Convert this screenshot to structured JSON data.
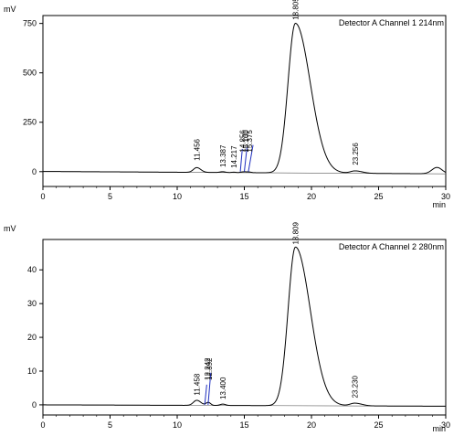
{
  "chart_data": [
    {
      "type": "line",
      "panel": "top",
      "ylabel": "mV",
      "xlabel": "min",
      "channel_label": "Detector A Channel 1 214nm",
      "xlim": [
        0,
        30
      ],
      "ylim": [
        -75,
        790
      ],
      "x_ticks": [
        0,
        5,
        10,
        15,
        20,
        25,
        30
      ],
      "x_tick_labels": [
        "0",
        "5",
        "10",
        "15",
        "20",
        "25",
        "30"
      ],
      "y_ticks": [
        0,
        250,
        500,
        750
      ],
      "y_tick_labels": [
        "0",
        "250",
        "500",
        "750"
      ],
      "baseline": {
        "start": 1,
        "end": -11
      },
      "series": [
        {
          "peaks": [
            {
              "rt": 11.456,
              "label": "11.456",
              "height": 24,
              "width": 0.25,
              "tail": 1.2,
              "label_value": 55
            },
            {
              "rt": 13.387,
              "label": "13.387",
              "height": 4,
              "width": 0.2,
              "tail": 1.0,
              "label_value": 22
            },
            {
              "rt": 14.217,
              "label": "14.217",
              "height": 2,
              "width": 0.15,
              "tail": 1.0,
              "label_value": 18
            },
            {
              "rt": 14.856,
              "label": "14.856",
              "height": 3,
              "width": 0.15,
              "tail": 1.0,
              "label_value": 98
            },
            {
              "rt": 15.1,
              "label": "15.100",
              "height": 3,
              "width": 0.15,
              "tail": 1.0,
              "label_value": 98
            },
            {
              "rt": 15.375,
              "label": "15.375",
              "height": 3,
              "width": 0.15,
              "tail": 1.0,
              "label_value": 98
            },
            {
              "rt": 18.805,
              "label": "18.805",
              "height": 757,
              "width": 0.55,
              "tail": 2.0,
              "label_value": 768
            },
            {
              "rt": 23.256,
              "label": "23.256",
              "height": 12,
              "width": 0.35,
              "tail": 1.5,
              "label_value": 33
            },
            {
              "rt": 29.35,
              "label": "",
              "height": 32,
              "width": 0.38,
              "tail": 1.0,
              "label_value": 0
            }
          ]
        }
      ],
      "integration_lines": [
        {
          "x1": 14.7,
          "y1": 0,
          "x2": 14.85,
          "y2": 115
        },
        {
          "x1": 15.0,
          "y1": 0,
          "x2": 15.2,
          "y2": 125
        },
        {
          "x1": 15.3,
          "y1": 0,
          "x2": 15.65,
          "y2": 135
        }
      ]
    },
    {
      "type": "line",
      "panel": "bottom",
      "ylabel": "mV",
      "xlabel": "min",
      "channel_label": "Detector A Channel 2 280nm",
      "xlim": [
        0,
        30
      ],
      "ylim": [
        -3,
        49
      ],
      "x_ticks": [
        0,
        5,
        10,
        15,
        20,
        25,
        30
      ],
      "x_tick_labels": [
        "0",
        "5",
        "10",
        "15",
        "20",
        "25",
        "30"
      ],
      "y_ticks": [
        0,
        10,
        20,
        30,
        40
      ],
      "y_tick_labels": [
        "0",
        "10",
        "20",
        "30",
        "40"
      ],
      "baseline": {
        "start": 0,
        "end": -0.4
      },
      "series": [
        {
          "peaks": [
            {
              "rt": 11.458,
              "label": "11.458",
              "height": 1.5,
              "width": 0.25,
              "tail": 1.2,
              "label_value": 2.8
            },
            {
              "rt": 12.242,
              "label": "12.242",
              "height": 0.5,
              "width": 0.15,
              "tail": 1.0,
              "label_value": 7.3
            },
            {
              "rt": 12.392,
              "label": "12.392",
              "height": 0.5,
              "width": 0.15,
              "tail": 1.0,
              "label_value": 7.3
            },
            {
              "rt": 13.4,
              "label": "13.400",
              "height": 0.4,
              "width": 0.2,
              "tail": 1.0,
              "label_value": 1.6
            },
            {
              "rt": 18.809,
              "label": "18.809",
              "height": 47,
              "width": 0.55,
              "tail": 2.0,
              "label_value": 47.5
            },
            {
              "rt": 23.23,
              "label": "23.230",
              "height": 0.8,
              "width": 0.35,
              "tail": 1.5,
              "label_value": 2.0
            }
          ]
        }
      ],
      "integration_lines": [
        {
          "x1": 12.05,
          "y1": 0,
          "x2": 12.2,
          "y2": 6.0
        },
        {
          "x1": 12.3,
          "y1": 0,
          "x2": 12.5,
          "y2": 9.5
        }
      ]
    }
  ]
}
